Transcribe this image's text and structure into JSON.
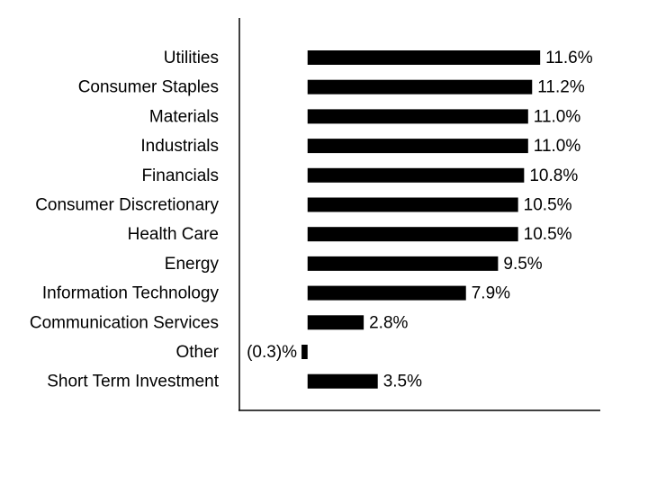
{
  "chart_data": {
    "type": "bar",
    "orientation": "horizontal",
    "categories": [
      "Utilities",
      "Consumer Staples",
      "Materials",
      "Industrials",
      "Financials",
      "Consumer Discretionary",
      "Health Care",
      "Energy",
      "Information Technology",
      "Communication Services",
      "Other",
      "Short Term Investment"
    ],
    "values": [
      11.6,
      11.2,
      11.0,
      11.0,
      10.8,
      10.5,
      10.5,
      9.5,
      7.9,
      2.8,
      -0.3,
      3.5
    ],
    "value_labels": [
      "11.6%",
      "11.2%",
      "11.0%",
      "11.0%",
      "10.8%",
      "10.5%",
      "10.5%",
      "9.5%",
      "7.9%",
      "2.8%",
      "(0.3)%",
      "3.5%"
    ],
    "color": "#000000",
    "xlim": [
      -3.4,
      14.6
    ]
  }
}
